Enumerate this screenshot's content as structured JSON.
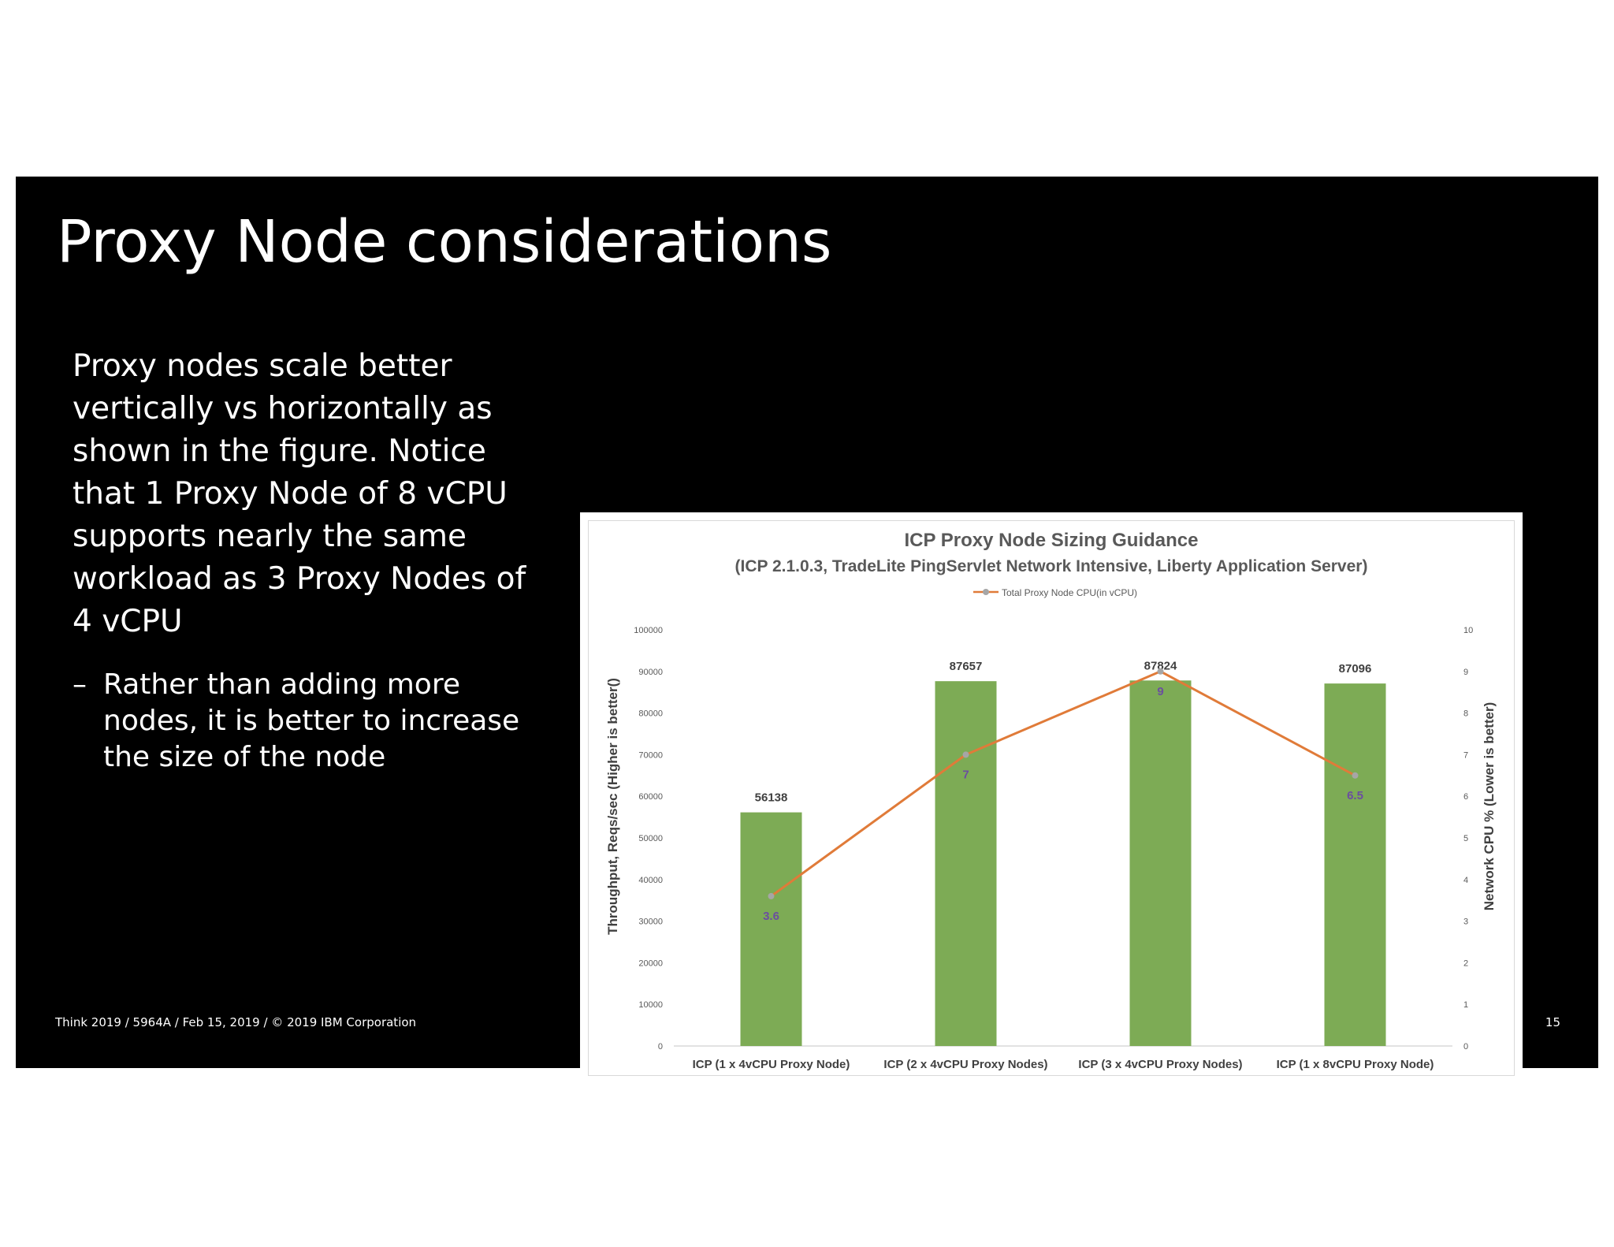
{
  "slide": {
    "title": "Proxy Node considerations",
    "body": "Proxy nodes scale better vertically vs horizontally as shown in the figure. Notice that 1 Proxy Node of 8 vCPU supports nearly the same workload as 3 Proxy Nodes of 4 vCPU",
    "bullet_dash": "–",
    "bullet": "Rather than adding more nodes, it is better to increase the size of the node",
    "footer": "Think 2019 / 5964A / Feb 15, 2019 / © 2019 IBM Corporation",
    "page_number": "15"
  },
  "colors": {
    "bar": "#7dab55",
    "line": "#e07b39",
    "marker": "#a6a6a6",
    "line_label": "#6b4ea0",
    "text": "#404040"
  },
  "chart_data": {
    "type": "bar",
    "title": "ICP Proxy Node Sizing Guidance",
    "subtitle": "(ICP 2.1.0.3, TradeLite PingServlet Network Intensive, Liberty Application Server)",
    "categories": [
      "ICP (1 x 4vCPU Proxy Node)",
      "ICP (2 x 4vCPU Proxy Nodes)",
      "ICP (3 x 4vCPU Proxy Nodes)",
      "ICP (1 x 8vCPU Proxy Node)"
    ],
    "series": [
      {
        "type": "bar",
        "axis": "left",
        "values": [
          56138,
          87657,
          87824,
          87096
        ],
        "labels": [
          "56138",
          "87657",
          "87824",
          "87096"
        ]
      },
      {
        "type": "line",
        "axis": "right",
        "name": "Total Proxy Node CPU(in vCPU)",
        "values": [
          3.6,
          7,
          9,
          6.5
        ],
        "labels": [
          "3.6",
          "7",
          "9",
          "6.5"
        ]
      }
    ],
    "ylabel": "Throughput, Reqs/sec (Higher is better()",
    "y2label": "Network CPU % (Lower is better)",
    "ylim": [
      0,
      100000
    ],
    "y2lim": [
      0,
      10
    ],
    "yticks": [
      "0",
      "10000",
      "20000",
      "30000",
      "40000",
      "50000",
      "60000",
      "70000",
      "80000",
      "90000",
      "100000"
    ],
    "y2ticks": [
      "0",
      "1",
      "2",
      "3",
      "4",
      "5",
      "6",
      "7",
      "8",
      "9",
      "10"
    ],
    "legend_position": "top",
    "grid": false
  }
}
